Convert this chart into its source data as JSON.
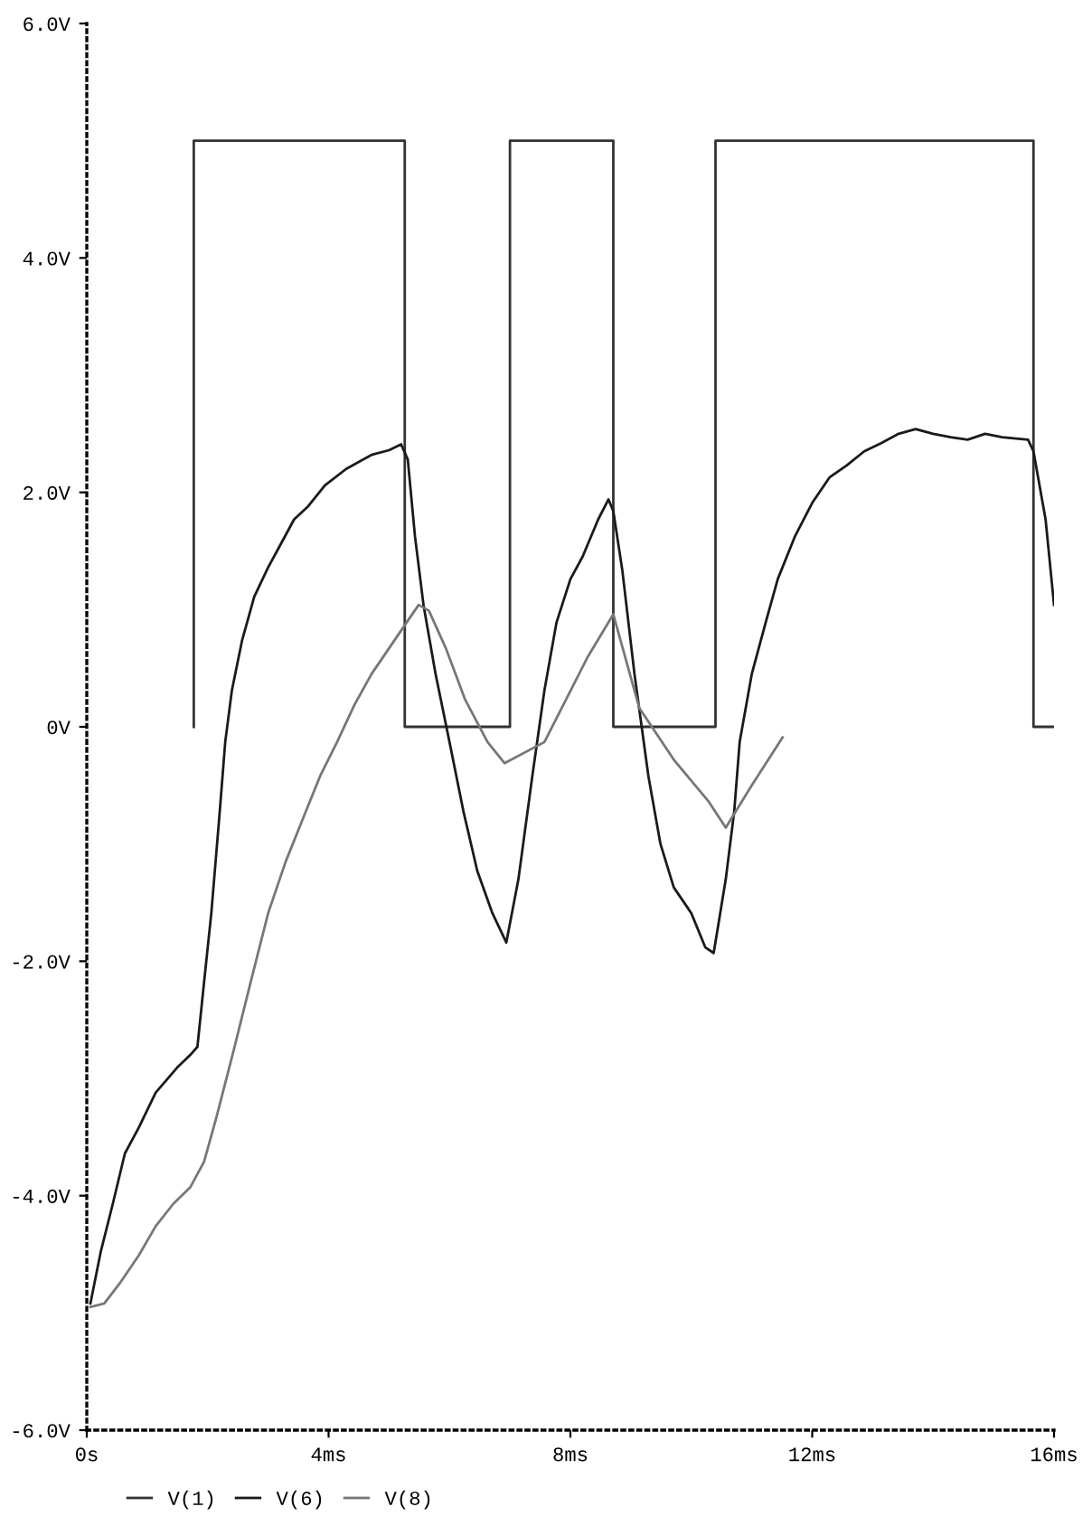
{
  "chart_data": {
    "type": "line",
    "xlim": [
      0,
      16
    ],
    "ylim": [
      -6,
      6
    ],
    "xticks": [
      {
        "value": 0,
        "label": "0s"
      },
      {
        "value": 4,
        "label": "4ms"
      },
      {
        "value": 8,
        "label": "8ms"
      },
      {
        "value": 12,
        "label": "12ms"
      },
      {
        "value": 16,
        "label": "16ms"
      }
    ],
    "yticks": [
      {
        "value": -6,
        "label": "-6.0V"
      },
      {
        "value": -4,
        "label": "-4.0V"
      },
      {
        "value": -2,
        "label": "-2.0V"
      },
      {
        "value": 0,
        "label": "0V"
      },
      {
        "value": 2,
        "label": "2.0V"
      },
      {
        "value": 4,
        "label": "4.0V"
      },
      {
        "value": 6,
        "label": "6.0V"
      }
    ],
    "grid": false,
    "legend": "bottom",
    "marker": "none",
    "line_style": "solid",
    "series": [
      {
        "name": "V(1)",
        "color": "#333333",
        "x": [
          1.77,
          1.77,
          5.26,
          5.26,
          7.0,
          7.0,
          8.71,
          8.71,
          10.4,
          10.4,
          15.66,
          15.66,
          16.0
        ],
        "values": [
          0,
          5,
          5,
          0,
          0,
          5,
          5,
          0,
          0,
          5,
          5,
          0,
          0
        ]
      },
      {
        "name": "V(6)",
        "color": "#1a1a1a",
        "x": [
          0.06,
          0.23,
          0.43,
          0.63,
          0.86,
          1.14,
          1.49,
          1.71,
          1.83,
          1.94,
          2.06,
          2.2,
          2.29,
          2.4,
          2.57,
          2.77,
          3.0,
          3.2,
          3.43,
          3.66,
          3.94,
          4.29,
          4.71,
          5.0,
          5.2,
          5.31,
          5.43,
          5.57,
          5.77,
          6.0,
          6.23,
          6.46,
          6.71,
          6.94,
          7.14,
          7.37,
          7.57,
          7.77,
          8.0,
          8.2,
          8.46,
          8.63,
          8.71,
          8.86,
          9.06,
          9.29,
          9.49,
          9.71,
          10.0,
          10.23,
          10.37,
          10.57,
          10.71,
          10.8,
          11.0,
          11.23,
          11.43,
          11.71,
          12.0,
          12.29,
          12.57,
          12.86,
          13.14,
          13.43,
          13.71,
          14.0,
          14.29,
          14.57,
          14.86,
          15.14,
          15.57,
          15.66,
          15.86,
          16.0
        ],
        "values": [
          -4.92,
          -4.48,
          -4.07,
          -3.64,
          -3.42,
          -3.12,
          -2.91,
          -2.8,
          -2.73,
          -2.18,
          -1.59,
          -0.72,
          -0.13,
          0.31,
          0.74,
          1.11,
          1.36,
          1.55,
          1.77,
          1.88,
          2.06,
          2.2,
          2.32,
          2.36,
          2.41,
          2.28,
          1.62,
          1.04,
          0.45,
          -0.13,
          -0.72,
          -1.23,
          -1.59,
          -1.84,
          -1.3,
          -0.42,
          0.31,
          0.89,
          1.26,
          1.45,
          1.77,
          1.94,
          1.84,
          1.33,
          0.45,
          -0.42,
          -1.0,
          -1.37,
          -1.59,
          -1.88,
          -1.93,
          -1.3,
          -0.72,
          -0.13,
          0.45,
          0.89,
          1.26,
          1.62,
          1.91,
          2.13,
          2.23,
          2.35,
          2.42,
          2.5,
          2.54,
          2.5,
          2.47,
          2.45,
          2.5,
          2.47,
          2.45,
          2.35,
          1.77,
          1.04
        ]
      },
      {
        "name": "V(8)",
        "color": "#777777",
        "x": [
          0.06,
          0.29,
          0.57,
          0.86,
          1.14,
          1.43,
          1.71,
          1.94,
          2.14,
          2.43,
          2.71,
          3.0,
          3.29,
          3.57,
          3.86,
          4.14,
          4.43,
          4.71,
          5.0,
          5.29,
          5.49,
          5.66,
          5.94,
          6.26,
          6.63,
          6.91,
          7.57,
          8.29,
          8.71,
          9.14,
          9.71,
          10.29,
          10.57,
          11.0,
          11.51
        ],
        "values": [
          -4.95,
          -4.92,
          -4.73,
          -4.51,
          -4.26,
          -4.07,
          -3.93,
          -3.71,
          -3.34,
          -2.76,
          -2.18,
          -1.59,
          -1.15,
          -0.79,
          -0.42,
          -0.13,
          0.19,
          0.45,
          0.67,
          0.89,
          1.04,
          0.99,
          0.67,
          0.23,
          -0.13,
          -0.31,
          -0.13,
          0.6,
          0.96,
          0.16,
          -0.28,
          -0.64,
          -0.86,
          -0.5,
          -0.09
        ]
      }
    ]
  }
}
